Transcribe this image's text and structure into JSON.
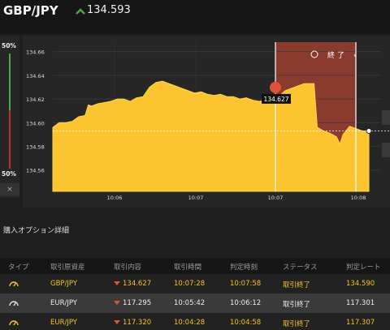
{
  "header": {
    "pair": "GBP/JPY",
    "price": "134.593"
  },
  "gauge": {
    "top_label": "50%",
    "bottom_label": "50%",
    "close_label": "×"
  },
  "chart": {
    "end_label": "終 了",
    "marker_price": "134.627",
    "y_ticks": [
      "134.66",
      "134.64",
      "134.62",
      "134.60",
      "134.58",
      "134.56"
    ],
    "x_ticks": [
      "10:06",
      "10:07",
      "10:07",
      "10:08"
    ]
  },
  "chart_data": {
    "type": "area",
    "x_tick_labels": [
      "10:06",
      "10:07",
      "10:07",
      "10:08"
    ],
    "y_ticks": [
      134.66,
      134.64,
      134.62,
      134.6,
      134.58,
      134.56
    ],
    "ylim": [
      134.542,
      134.668
    ],
    "marker_value": 134.627,
    "current_value": 134.593,
    "points": [
      [
        0,
        134.596
      ],
      [
        2,
        134.6
      ],
      [
        4,
        134.6
      ],
      [
        6,
        134.601
      ],
      [
        8,
        134.605
      ],
      [
        10,
        134.606
      ],
      [
        11,
        134.615
      ],
      [
        12,
        134.614
      ],
      [
        14,
        134.616
      ],
      [
        16,
        134.617
      ],
      [
        18,
        134.618
      ],
      [
        20,
        134.62
      ],
      [
        22,
        134.62
      ],
      [
        24,
        134.618
      ],
      [
        26,
        134.621
      ],
      [
        28,
        134.622
      ],
      [
        30,
        134.63
      ],
      [
        32,
        134.634
      ],
      [
        34,
        134.635
      ],
      [
        36,
        134.633
      ],
      [
        38,
        134.631
      ],
      [
        40,
        134.629
      ],
      [
        42,
        134.627
      ],
      [
        44,
        134.625
      ],
      [
        46,
        134.626
      ],
      [
        48,
        134.624
      ],
      [
        50,
        134.623
      ],
      [
        52,
        134.624
      ],
      [
        54,
        134.622
      ],
      [
        56,
        134.622
      ],
      [
        58,
        134.62
      ],
      [
        60,
        134.621
      ],
      [
        62,
        134.619
      ],
      [
        64,
        134.618
      ],
      [
        66,
        134.619
      ],
      [
        68,
        134.62
      ],
      [
        70,
        134.622
      ],
      [
        72,
        134.627
      ],
      [
        74,
        134.629
      ],
      [
        76,
        134.631
      ],
      [
        78,
        134.633
      ],
      [
        80,
        134.633
      ],
      [
        81,
        134.633
      ],
      [
        82,
        134.596
      ],
      [
        84,
        134.593
      ],
      [
        86,
        134.591
      ],
      [
        88,
        134.588
      ],
      [
        89,
        134.582
      ],
      [
        90,
        134.59
      ],
      [
        92,
        134.597
      ],
      [
        94,
        134.595
      ],
      [
        96,
        134.593
      ],
      [
        98,
        134.593
      ]
    ]
  },
  "options_section": {
    "title": "購入オプション詳細"
  },
  "table": {
    "headers": [
      "タイプ",
      "取引原資産",
      "取引内容",
      "取引時間",
      "判定時刻",
      "ステータス",
      "判定レート"
    ],
    "rows": [
      {
        "asset": "GBP/JPY",
        "rate": "134.627",
        "trade_time": "10:07:28",
        "judge_time": "10:07:58",
        "status": "取引終了",
        "judge_rate": "134.590"
      },
      {
        "asset": "EUR/JPY",
        "rate": "117.295",
        "trade_time": "10:05:42",
        "judge_time": "10:06:12",
        "status": "取引終了",
        "judge_rate": "117.301"
      },
      {
        "asset": "EUR/JPY",
        "rate": "117.320",
        "trade_time": "10:04:28",
        "judge_time": "10:04:58",
        "status": "取引終了",
        "judge_rate": "117.307"
      }
    ]
  },
  "colors": {
    "accent": "#f5c518",
    "area": "#fcc530",
    "expired": "#8b3a2e",
    "up": "#48a848",
    "down": "#e05040"
  }
}
